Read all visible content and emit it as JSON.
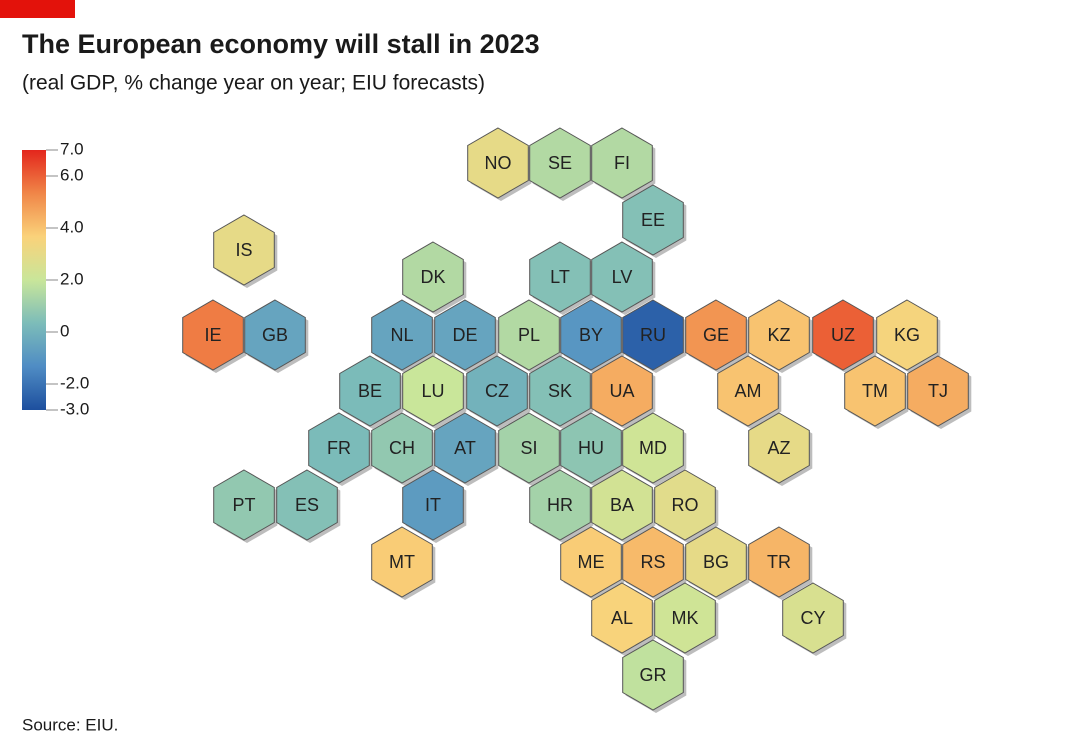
{
  "chart_data": {
    "type": "hexmap",
    "title": "The European economy will stall in 2023",
    "subtitle": "(real GDP, % change year on year; EIU forecasts)",
    "source": "Source: EIU.",
    "zlim": [
      -3,
      7
    ],
    "zticks": [
      {
        "value": 7,
        "label": "7.0"
      },
      {
        "value": 6,
        "label": "6.0"
      },
      {
        "value": 4,
        "label": "4.0"
      },
      {
        "value": 2,
        "label": "2.0"
      },
      0,
      {
        "value": -2,
        "label": "-2.0"
      },
      {
        "value": -3,
        "label": "-3.0"
      }
    ],
    "colors": [
      "#1d4f9e",
      "#4f8cc4",
      "#7cbcb9",
      "#c9e69a",
      "#fad27a",
      "#f08648",
      "#e3261c"
    ],
    "hexes": [
      {
        "label": "NO",
        "value": 3.0
      },
      {
        "label": "SE",
        "value": 1.5
      },
      {
        "label": "FI",
        "value": 1.5
      },
      {
        "label": "EE",
        "value": 0.5
      },
      {
        "label": "IS",
        "value": 3.0
      },
      {
        "label": "DK",
        "value": 1.5
      },
      {
        "label": "LT",
        "value": 0.5
      },
      {
        "label": "LV",
        "value": 0.5
      },
      {
        "label": "IE",
        "value": 5.5
      },
      {
        "label": "GB",
        "value": -0.5
      },
      {
        "label": "NL",
        "value": -0.5
      },
      {
        "label": "DE",
        "value": -0.5
      },
      {
        "label": "PL",
        "value": 1.5
      },
      {
        "label": "BY",
        "value": -1.0
      },
      {
        "label": "RU",
        "value": -2.5
      },
      {
        "label": "GE",
        "value": 5.0
      },
      {
        "label": "KZ",
        "value": 4.0
      },
      {
        "label": "UZ",
        "value": 6.0
      },
      {
        "label": "KG",
        "value": 3.5
      },
      {
        "label": "BE",
        "value": 0.3
      },
      {
        "label": "LU",
        "value": 2.0
      },
      {
        "label": "CZ",
        "value": 0.0
      },
      {
        "label": "SK",
        "value": 0.5
      },
      {
        "label": "UA",
        "value": 4.5
      },
      {
        "label": "AM",
        "value": 4.0
      },
      {
        "label": "TM",
        "value": 4.0
      },
      {
        "label": "TJ",
        "value": 4.5
      },
      {
        "label": "FR",
        "value": 0.3
      },
      {
        "label": "CH",
        "value": 0.8
      },
      {
        "label": "AT",
        "value": -0.5
      },
      {
        "label": "SI",
        "value": 1.2
      },
      {
        "label": "HU",
        "value": 0.7
      },
      {
        "label": "MD",
        "value": 2.2
      },
      {
        "label": "AZ",
        "value": 3.0
      },
      {
        "label": "PT",
        "value": 0.8
      },
      {
        "label": "ES",
        "value": 0.5
      },
      {
        "label": "IT",
        "value": -0.8
      },
      {
        "label": "HR",
        "value": 1.2
      },
      {
        "label": "BA",
        "value": 2.3
      },
      {
        "label": "RO",
        "value": 2.8
      },
      {
        "label": "MT",
        "value": 3.8
      },
      {
        "label": "ME",
        "value": 3.8
      },
      {
        "label": "RS",
        "value": 4.2
      },
      {
        "label": "BG",
        "value": 3.0
      },
      {
        "label": "TR",
        "value": 4.3
      },
      {
        "label": "AL",
        "value": 3.6
      },
      {
        "label": "MK",
        "value": 2.2
      },
      {
        "label": "CY",
        "value": 2.5
      },
      {
        "label": "GR",
        "value": 1.8
      }
    ]
  }
}
